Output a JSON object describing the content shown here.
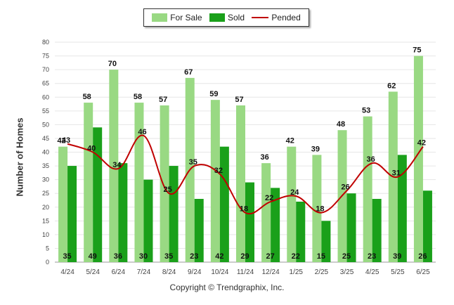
{
  "chart_data": {
    "type": "bar",
    "ylabel": "Number of Homes",
    "ylim": [
      0,
      80
    ],
    "ytick_step": 5,
    "categories": [
      "4/24",
      "5/24",
      "6/24",
      "7/24",
      "8/24",
      "9/24",
      "10/24",
      "11/24",
      "12/24",
      "1/25",
      "2/25",
      "3/25",
      "4/25",
      "5/25",
      "6/25"
    ],
    "series": [
      {
        "name": "For Sale",
        "kind": "bar",
        "color": "#99d983",
        "values": [
          42,
          58,
          70,
          58,
          57,
          67,
          59,
          57,
          36,
          42,
          39,
          48,
          53,
          62,
          75
        ]
      },
      {
        "name": "Sold",
        "kind": "bar",
        "color": "#1aa01a",
        "values": [
          35,
          49,
          36,
          30,
          35,
          23,
          42,
          29,
          27,
          22,
          15,
          25,
          23,
          39,
          26
        ]
      },
      {
        "name": "Pended",
        "kind": "line",
        "color": "#c00000",
        "values": [
          43,
          40,
          34,
          46,
          25,
          35,
          32,
          18,
          22,
          24,
          18,
          26,
          36,
          31,
          42
        ]
      }
    ],
    "grid": true,
    "legend": "top-center",
    "footer": "Copyright © Trendgraphix, Inc."
  }
}
